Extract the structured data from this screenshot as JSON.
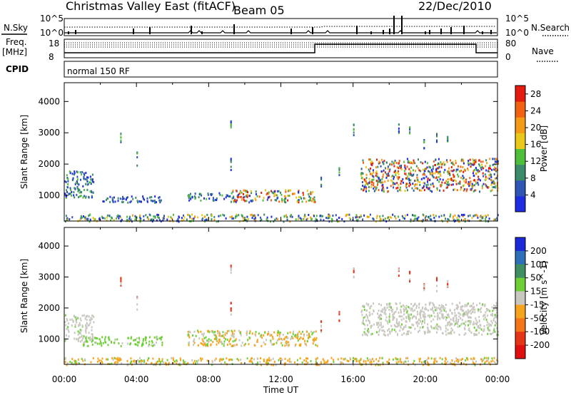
{
  "header": {
    "title": "Christmas Valley East (fitACF)",
    "beam": "Beam 05",
    "date": "22/Dec/2010"
  },
  "top_panels": {
    "nsky_label": "N.Sky",
    "nsearch_label": "N.Search",
    "noise_ticks": [
      "10^5",
      "10^0"
    ],
    "freq_label": "Freq.",
    "freq_unit": "[MHz]",
    "freq_ticks": [
      "18",
      "8"
    ],
    "nave_label": "Nave",
    "nave_ticks": [
      "80",
      "0"
    ],
    "cpid_label": "CPID",
    "cpid_value": "normal 150 RF"
  },
  "x_axis": {
    "label": "Time UT",
    "ticks": [
      "00:00",
      "04:00",
      "08:00",
      "12:00",
      "16:00",
      "20:00",
      "00:00"
    ],
    "range_hours": [
      0,
      24
    ]
  },
  "chart_data": [
    {
      "type": "heatmap",
      "name": "power",
      "ylabel": "Slant Range [km]",
      "ylim": [
        180,
        4600
      ],
      "yticks": [
        1000,
        2000,
        3000,
        4000
      ],
      "colorbar": {
        "label": "Power [dB]",
        "ticks": [
          "4",
          "8",
          "12",
          "16",
          "20",
          "24",
          "28"
        ],
        "range": [
          0,
          30
        ],
        "colors": [
          "#1f2de0",
          "#2f55b5",
          "#3b8a6a",
          "#4fbe3b",
          "#e8c81a",
          "#f59a14",
          "#f26211",
          "#e41c10"
        ]
      },
      "scatter_regions": [
        {
          "t": [
            0.0,
            1.6
          ],
          "r": [
            950,
            1800
          ],
          "level": "mid"
        },
        {
          "t": [
            1.6,
            5.4
          ],
          "r": [
            800,
            1000
          ],
          "level": "low"
        },
        {
          "t": [
            6.8,
            9.2
          ],
          "r": [
            850,
            1100
          ],
          "level": "mid"
        },
        {
          "t": [
            9.2,
            14.0
          ],
          "r": [
            800,
            1200
          ],
          "level": "high"
        },
        {
          "t": [
            16.4,
            24.0
          ],
          "r": [
            1150,
            2200
          ],
          "level": "high"
        },
        {
          "t": [
            0.0,
            24.0
          ],
          "r": [
            190,
            420
          ],
          "level": "ground"
        }
      ]
    },
    {
      "type": "heatmap",
      "name": "velocity",
      "ylabel": "Slant Range [km]",
      "ylim": [
        180,
        4600
      ],
      "yticks": [
        1000,
        2000,
        3000,
        4000
      ],
      "colorbar": {
        "label": "Velocity [m s^-1]",
        "ticks": [
          "200",
          "100",
          "50",
          "15",
          "-15",
          "-50",
          "-100",
          "-200"
        ],
        "colors": [
          "#1a2ad8",
          "#2f6fb8",
          "#3f8f62",
          "#6ed036",
          "#c8c8c0",
          "#f7a41d",
          "#f4761a",
          "#e63418",
          "#e01010"
        ]
      },
      "scatter_regions": [
        {
          "t": [
            0.0,
            1.6
          ],
          "r": [
            950,
            1800
          ],
          "level": "grey"
        },
        {
          "t": [
            1.0,
            5.4
          ],
          "r": [
            800,
            1100
          ],
          "level": "green"
        },
        {
          "t": [
            6.8,
            14.0
          ],
          "r": [
            800,
            1300
          ],
          "level": "mixed"
        },
        {
          "t": [
            16.4,
            24.0
          ],
          "r": [
            1150,
            2200
          ],
          "level": "grey"
        },
        {
          "t": [
            0.0,
            24.0
          ],
          "r": [
            190,
            420
          ],
          "level": "orange"
        }
      ]
    }
  ]
}
